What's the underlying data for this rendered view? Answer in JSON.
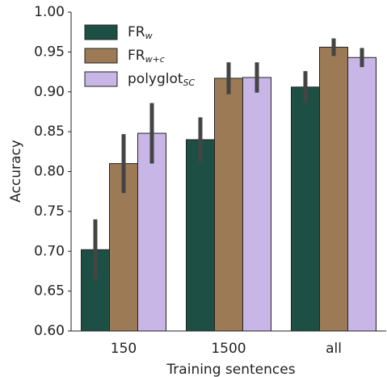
{
  "chart_data": {
    "type": "bar",
    "x_label": "Training sentences",
    "y_label": "Accuracy",
    "categories": [
      "150",
      "1500",
      "all"
    ],
    "series": [
      {
        "name": "FR",
        "subscript": "w",
        "color": "#1d4f45",
        "values": [
          0.702,
          0.84,
          0.906
        ],
        "errors": [
          0.038,
          0.028,
          0.02
        ]
      },
      {
        "name": "FR",
        "subscript": "w+c",
        "color": "#9c7a55",
        "values": [
          0.81,
          0.917,
          0.956
        ],
        "errors": [
          0.037,
          0.02,
          0.011
        ]
      },
      {
        "name": "polyglot",
        "subscript": "SC",
        "color": "#c8b6e6",
        "values": [
          0.848,
          0.918,
          0.943
        ],
        "errors": [
          0.038,
          0.019,
          0.012
        ]
      }
    ],
    "ylim": [
      0.6,
      1.0
    ],
    "yticks": [
      {
        "value": 0.6,
        "label": "0.60"
      },
      0.65,
      {
        "value": 0.7,
        "label": "0.70"
      },
      0.75,
      {
        "value": 0.8,
        "label": "0.80"
      },
      0.85,
      {
        "value": 0.9,
        "label": "0.90"
      },
      0.95,
      {
        "value": 1.0,
        "label": "1.00"
      }
    ],
    "legend": "upper left"
  }
}
